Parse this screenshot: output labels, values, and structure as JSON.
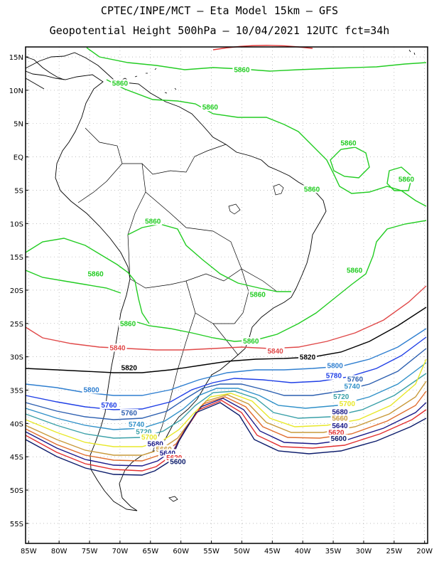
{
  "title": {
    "line1": "CPTEC/INPE/MCT –  Eta Model 15km – GFS",
    "line2": "Geopotential Height 500hPa – 10/04/2021 12UTC fct=34h"
  },
  "axes": {
    "lat_labels": [
      "15N",
      "10N",
      "5N",
      "EQ",
      "5S",
      "10S",
      "15S",
      "20S",
      "25S",
      "30S",
      "35S",
      "40S",
      "45S",
      "50S",
      "55S"
    ],
    "lat_values": [
      15,
      10,
      5,
      0,
      -5,
      -10,
      -15,
      -20,
      -25,
      -30,
      -35,
      -40,
      -45,
      -50,
      -55
    ],
    "lon_labels": [
      "85W",
      "80W",
      "75W",
      "70W",
      "65W",
      "60W",
      "55W",
      "50W",
      "45W",
      "40W",
      "35W",
      "30W",
      "25W",
      "20W"
    ],
    "lon_values": [
      -85,
      -80,
      -75,
      -70,
      -65,
      -60,
      -55,
      -50,
      -45,
      -40,
      -35,
      -30,
      -25,
      -20
    ],
    "lon_range": [
      -85.5,
      -19.5
    ],
    "lat_range": [
      -58,
      16.5
    ],
    "grid": true
  },
  "colors": {
    "5880": "#e23a3a",
    "5860": "#22cc22",
    "5840": "#e04848",
    "5820": "#000000",
    "5800": "#2f7fd0",
    "5780": "#1f3fe6",
    "5760": "#2c5fb0",
    "5740": "#2f90c8",
    "5720": "#3aa0a8",
    "5700": "#e8e82a",
    "5680": "#c99a3a",
    "5660": "#e06d2f",
    "5640": "#1a1a8a",
    "5620": "#e23030",
    "5600": "#0a1a6a",
    "coast": "#000000"
  },
  "contour_labels": [
    {
      "text": "5860",
      "lon": -50,
      "lat": 12.8,
      "color_key": "5860"
    },
    {
      "text": "5860",
      "lon": -70,
      "lat": 10.8,
      "color_key": "5860"
    },
    {
      "text": "5860",
      "lon": -55.2,
      "lat": 7.2,
      "color_key": "5860"
    },
    {
      "text": "5860",
      "lon": -32.5,
      "lat": 1.8,
      "color_key": "5860"
    },
    {
      "text": "5860",
      "lon": -38.5,
      "lat": -5.1,
      "color_key": "5860"
    },
    {
      "text": "5860",
      "lon": -23,
      "lat": -3.6,
      "color_key": "5860"
    },
    {
      "text": "5860",
      "lon": -64.6,
      "lat": -9.9,
      "color_key": "5860"
    },
    {
      "text": "5860",
      "lon": -74,
      "lat": -17.8,
      "color_key": "5860"
    },
    {
      "text": "5860",
      "lon": -31.5,
      "lat": -17.3,
      "color_key": "5860"
    },
    {
      "text": "5860",
      "lon": -47.4,
      "lat": -20.9,
      "color_key": "5860"
    },
    {
      "text": "5860",
      "lon": -68.7,
      "lat": -25.3,
      "color_key": "5860"
    },
    {
      "text": "5860",
      "lon": -48.5,
      "lat": -27.9,
      "color_key": "5860"
    },
    {
      "text": "5840",
      "lon": -70.4,
      "lat": -28.9,
      "color_key": "5840"
    },
    {
      "text": "5840",
      "lon": -44.5,
      "lat": -29.4,
      "color_key": "5840"
    },
    {
      "text": "5820",
      "lon": -68.5,
      "lat": -31.9,
      "color_key": "5820"
    },
    {
      "text": "5820",
      "lon": -39.2,
      "lat": -30.3,
      "color_key": "5820"
    },
    {
      "text": "5800",
      "lon": -34.7,
      "lat": -31.6,
      "color_key": "5800"
    },
    {
      "text": "5800",
      "lon": -74.7,
      "lat": -35.2,
      "color_key": "5800"
    },
    {
      "text": "5780",
      "lon": -34.9,
      "lat": -33.1,
      "color_key": "5780"
    },
    {
      "text": "5760",
      "lon": -31.4,
      "lat": -33.6,
      "color_key": "5760"
    },
    {
      "text": "5760",
      "lon": -71.8,
      "lat": -37.5,
      "color_key": "5780"
    },
    {
      "text": "5760",
      "lon": -68.5,
      "lat": -38.7,
      "color_key": "5760"
    },
    {
      "text": "5740",
      "lon": -31.9,
      "lat": -34.7,
      "color_key": "5740"
    },
    {
      "text": "5740",
      "lon": -67.3,
      "lat": -40.4,
      "color_key": "5740"
    },
    {
      "text": "5720",
      "lon": -33.7,
      "lat": -36.2,
      "color_key": "5720"
    },
    {
      "text": "5720",
      "lon": -66.1,
      "lat": -41.5,
      "color_key": "5720"
    },
    {
      "text": "5700",
      "lon": -32.7,
      "lat": -37.3,
      "color_key": "5700"
    },
    {
      "text": "5700",
      "lon": -65.2,
      "lat": -42.3,
      "color_key": "5700"
    },
    {
      "text": "5680",
      "lon": -33.9,
      "lat": -38.5,
      "color_key": "5640"
    },
    {
      "text": "5680",
      "lon": -64.2,
      "lat": -43.3,
      "color_key": "5640"
    },
    {
      "text": "5660",
      "lon": -33.9,
      "lat": -39.5,
      "color_key": "5680"
    },
    {
      "text": "5660",
      "lon": -62.8,
      "lat": -44.1,
      "color_key": "5680"
    },
    {
      "text": "5640",
      "lon": -33.9,
      "lat": -40.6,
      "color_key": "5640"
    },
    {
      "text": "5640",
      "lon": -62.2,
      "lat": -44.7,
      "color_key": "5640"
    },
    {
      "text": "5620",
      "lon": -34.5,
      "lat": -41.6,
      "color_key": "5620"
    },
    {
      "text": "5620",
      "lon": -61.1,
      "lat": -45.4,
      "color_key": "5620"
    },
    {
      "text": "5600",
      "lon": -34.1,
      "lat": -42.5,
      "color_key": "5600"
    },
    {
      "text": "5600",
      "lon": -60.5,
      "lat": -46.0,
      "color_key": "5600"
    }
  ]
}
